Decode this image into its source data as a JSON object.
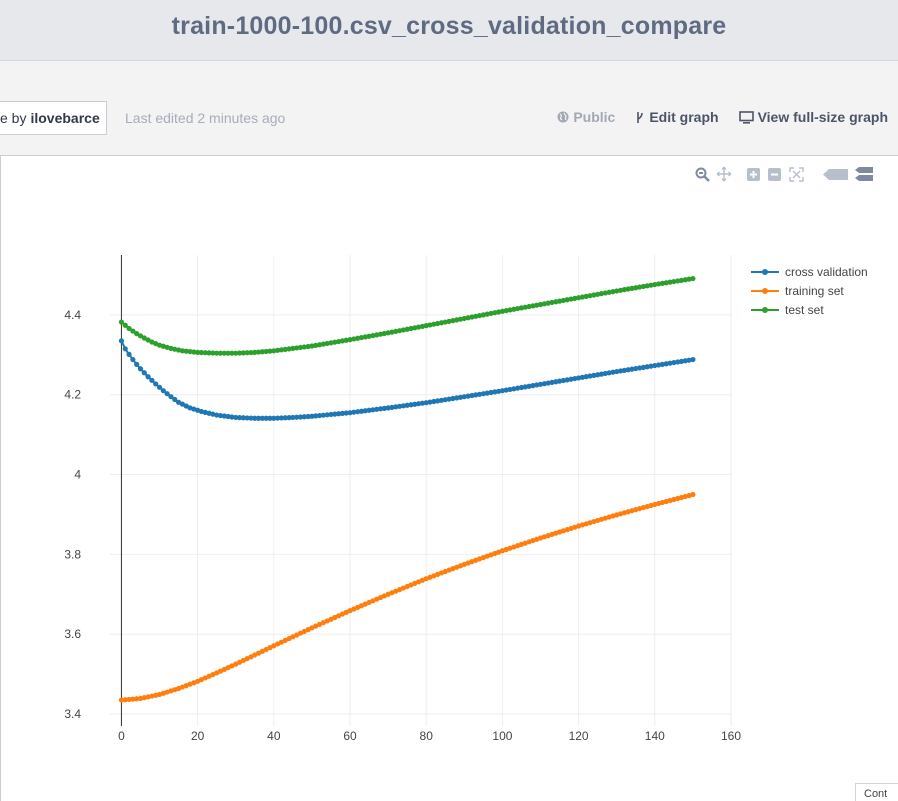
{
  "header": {
    "title": "train-1000-100.csv_cross_validation_compare"
  },
  "toolbar": {
    "byline_prefix": "e by",
    "byline_user": "ilovebarce",
    "last_edited": "Last edited 2 minutes ago",
    "public_label": "Public",
    "edit_label": "Edit graph",
    "view_label": "View full-size graph"
  },
  "corner_text": "Cont",
  "modebar_icons": [
    "zoom-icon",
    "pan-icon",
    "zoom-in-icon",
    "zoom-out-icon",
    "autoscale-icon",
    "hover-closest-icon",
    "hover-compare-icon"
  ],
  "chart_data": {
    "type": "line",
    "title": "",
    "xlabel": "",
    "ylabel": "",
    "xlim": [
      -3,
      160
    ],
    "ylim": [
      3.37,
      4.55
    ],
    "xticks": [
      0,
      20,
      40,
      60,
      80,
      100,
      120,
      140,
      160
    ],
    "yticks": [
      3.4,
      3.6,
      3.8,
      4.0,
      4.2,
      4.4
    ],
    "ytick_labels": [
      "3.4",
      "3.6",
      "3.8",
      "4",
      "4.2",
      "4.4"
    ],
    "grid": true,
    "legend_position": "top-right",
    "markers": true,
    "series": [
      {
        "name": "cross validation",
        "color": "#1f77b4",
        "points": [
          [
            0,
            4.335
          ],
          [
            1,
            4.315
          ],
          [
            2,
            4.301
          ],
          [
            3,
            4.288
          ],
          [
            4,
            4.276
          ],
          [
            5,
            4.265
          ],
          [
            7,
            4.245
          ],
          [
            9,
            4.227
          ],
          [
            11,
            4.21
          ],
          [
            13,
            4.195
          ],
          [
            15,
            4.181
          ],
          [
            18,
            4.167
          ],
          [
            21,
            4.158
          ],
          [
            25,
            4.149
          ],
          [
            30,
            4.143
          ],
          [
            35,
            4.141
          ],
          [
            40,
            4.141
          ],
          [
            45,
            4.143
          ],
          [
            50,
            4.146
          ],
          [
            60,
            4.155
          ],
          [
            70,
            4.167
          ],
          [
            80,
            4.18
          ],
          [
            90,
            4.195
          ],
          [
            100,
            4.21
          ],
          [
            110,
            4.226
          ],
          [
            120,
            4.242
          ],
          [
            130,
            4.258
          ],
          [
            140,
            4.273
          ],
          [
            150,
            4.288
          ]
        ]
      },
      {
        "name": "training set",
        "color": "#ff7f0e",
        "points": [
          [
            0,
            3.435
          ],
          [
            5,
            3.439
          ],
          [
            10,
            3.449
          ],
          [
            15,
            3.464
          ],
          [
            20,
            3.482
          ],
          [
            25,
            3.503
          ],
          [
            30,
            3.525
          ],
          [
            40,
            3.571
          ],
          [
            50,
            3.616
          ],
          [
            60,
            3.659
          ],
          [
            70,
            3.7
          ],
          [
            80,
            3.739
          ],
          [
            90,
            3.775
          ],
          [
            100,
            3.809
          ],
          [
            110,
            3.841
          ],
          [
            120,
            3.871
          ],
          [
            130,
            3.899
          ],
          [
            140,
            3.925
          ],
          [
            150,
            3.95
          ]
        ]
      },
      {
        "name": "test set",
        "color": "#2ca02c",
        "points": [
          [
            0,
            4.382
          ],
          [
            2,
            4.366
          ],
          [
            4,
            4.353
          ],
          [
            6,
            4.342
          ],
          [
            8,
            4.332
          ],
          [
            10,
            4.324
          ],
          [
            13,
            4.316
          ],
          [
            16,
            4.31
          ],
          [
            20,
            4.306
          ],
          [
            25,
            4.304
          ],
          [
            30,
            4.304
          ],
          [
            35,
            4.306
          ],
          [
            40,
            4.31
          ],
          [
            50,
            4.322
          ],
          [
            60,
            4.338
          ],
          [
            70,
            4.355
          ],
          [
            80,
            4.373
          ],
          [
            90,
            4.391
          ],
          [
            100,
            4.409
          ],
          [
            110,
            4.426
          ],
          [
            120,
            4.443
          ],
          [
            130,
            4.46
          ],
          [
            140,
            4.476
          ],
          [
            150,
            4.491
          ]
        ]
      }
    ]
  }
}
